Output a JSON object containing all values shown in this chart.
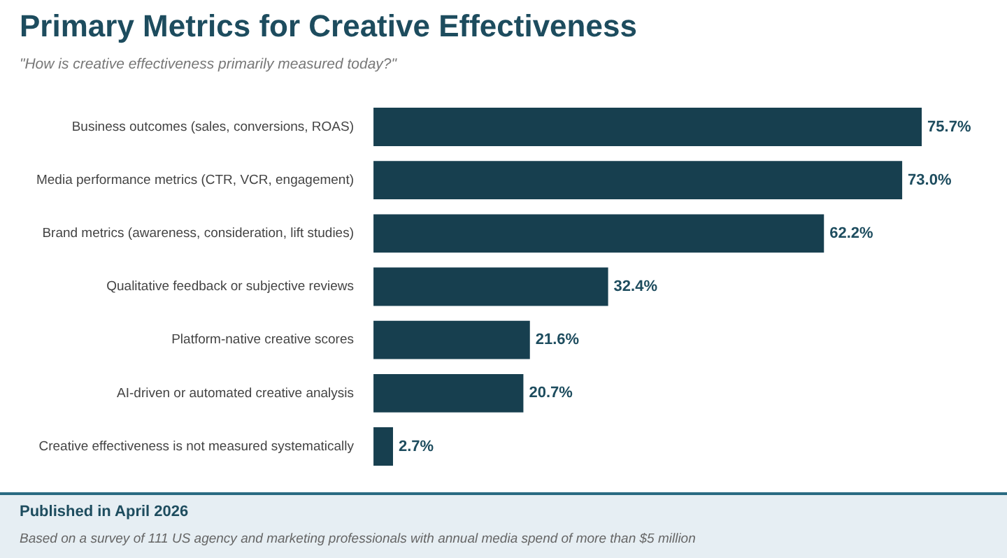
{
  "chart_data": {
    "type": "bar",
    "orientation": "horizontal",
    "title": "Primary Metrics for Creative Effectiveness",
    "subtitle": "\"How is creative effectiveness  primarily measured today?\"",
    "categories": [
      "Business outcomes (sales, conversions, ROAS)",
      "Media performance metrics (CTR, VCR, engagement)",
      "Brand metrics (awareness, consideration, lift studies)",
      "Qualitative feedback or subjective reviews",
      "Platform-native creative scores",
      "AI-driven or automated creative analysis",
      "Creative effectiveness is not measured systematically"
    ],
    "values": [
      75.7,
      73.0,
      62.2,
      32.4,
      21.6,
      20.7,
      2.7
    ],
    "value_labels": [
      "75.7%",
      "73.0%",
      "62.2%",
      "32.4%",
      "21.6%",
      "20.7%",
      "2.7%"
    ],
    "color": "#173f4f",
    "legend": false,
    "tick_labels": "y",
    "annotations": [
      "Published in April 2026",
      "Based on a survey of 111 US agency and marketing professionals with annual media spend of more than $5 million"
    ]
  }
}
